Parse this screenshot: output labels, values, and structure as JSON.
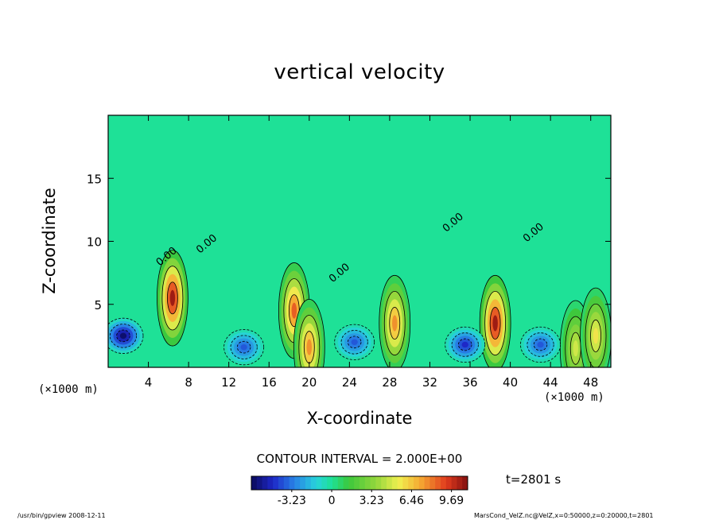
{
  "chart_data": {
    "type": "heatmap",
    "title": "vertical velocity",
    "xlabel": "X-coordinate",
    "ylabel": "Z-coordinate",
    "x_unit_label": "(×1000 m)",
    "xlim": [
      0,
      50
    ],
    "ylim": [
      0,
      20
    ],
    "x_ticks": [
      4,
      8,
      12,
      16,
      20,
      24,
      28,
      32,
      36,
      40,
      44,
      48
    ],
    "y_ticks": [
      5,
      10,
      15
    ],
    "contour_labels": [
      {
        "text": "0.00",
        "x": 10.0,
        "z": 9.6
      },
      {
        "text": "0.00",
        "x": 6.0,
        "z": 8.6
      },
      {
        "text": "0.00",
        "x": 23.2,
        "z": 7.3
      },
      {
        "text": "0.00",
        "x": 34.5,
        "z": 11.3
      },
      {
        "text": "0.00",
        "x": 42.5,
        "z": 10.5
      }
    ],
    "colorbar": {
      "ticks": [
        "-3.23",
        "0",
        "3.23",
        "6.46",
        "9.69"
      ],
      "range": [
        -6.5,
        11.0
      ]
    },
    "contour_interval": "CONTOUR INTERVAL = 2.000E+00",
    "plumes": [
      {
        "x": 6.4,
        "z": 5.5,
        "amp": 11.0
      },
      {
        "x": 18.5,
        "z": 4.5,
        "amp": 9.0
      },
      {
        "x": 20.0,
        "z": 1.6,
        "amp": 8.0
      },
      {
        "x": 28.5,
        "z": 3.5,
        "amp": 8.0
      },
      {
        "x": 38.5,
        "z": 3.5,
        "amp": 11.0
      },
      {
        "x": 46.5,
        "z": 1.5,
        "amp": 5.0
      },
      {
        "x": 48.5,
        "z": 2.5,
        "amp": 6.0
      },
      {
        "x": 1.5,
        "z": 2.5,
        "amp": -6.5
      },
      {
        "x": 13.5,
        "z": 1.6,
        "amp": -4.0
      },
      {
        "x": 24.5,
        "z": 2.0,
        "amp": -4.0
      },
      {
        "x": 35.5,
        "z": 1.8,
        "amp": -5.0
      },
      {
        "x": 43.0,
        "z": 1.8,
        "amp": -4.0
      }
    ]
  },
  "time_label": "t=2801 s",
  "footer": {
    "left": "/usr/bin/gpview   2008-12-11",
    "right": "MarsCond_VelZ.nc@VelZ,x=0:50000,z=0:20000,t=2801"
  }
}
